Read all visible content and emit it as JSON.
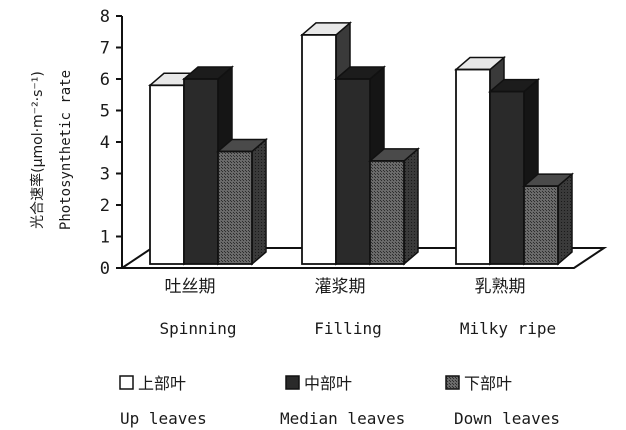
{
  "chart_data": {
    "type": "bar",
    "categories": [
      {
        "cn": "吐丝期",
        "en": "Spinning"
      },
      {
        "cn": "灌浆期",
        "en": "Filling"
      },
      {
        "cn": "乳熟期",
        "en": "Milky ripe"
      }
    ],
    "series": [
      {
        "name_cn": "上部叶",
        "name_en": "Up leaves",
        "values": [
          5.8,
          7.4,
          6.3
        ],
        "color": "#ffffff"
      },
      {
        "name_cn": "中部叶",
        "name_en": "Median leaves",
        "values": [
          6.0,
          6.0,
          5.6
        ],
        "color": "#262626"
      },
      {
        "name_cn": "下部叶",
        "name_en": "Down leaves",
        "values": [
          3.7,
          3.4,
          2.6
        ],
        "color": "#5a5a5a"
      }
    ],
    "ylabel_cn": "光合速率(μmol·m⁻²·s⁻¹)",
    "ylabel_en": "Photosynthetic rate",
    "ylim": [
      0,
      8
    ],
    "yticks": [
      "0",
      "1",
      "2",
      "3",
      "4",
      "5",
      "6",
      "7",
      "8"
    ],
    "legend_placement": "bottom",
    "grid": false
  }
}
